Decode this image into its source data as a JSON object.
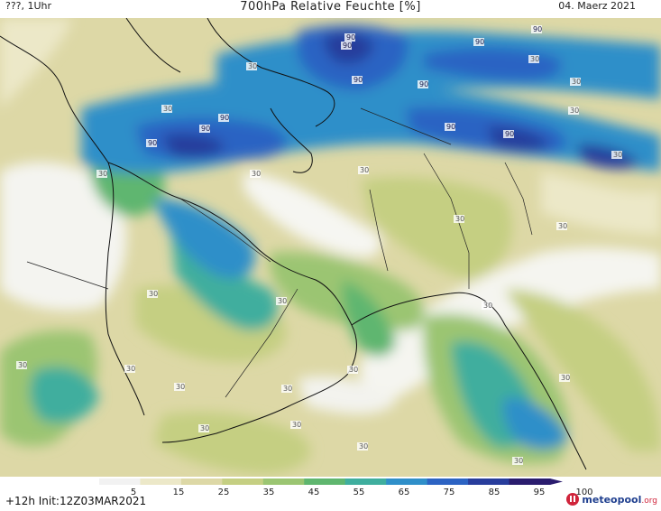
{
  "header": {
    "left": "???, 1Uhr",
    "title": "700hPa Relative Feuchte [%]",
    "date": "04. Maerz 2021"
  },
  "footer": {
    "run": "+12h Init:12Z03MAR2021",
    "logo_name": "meteopool",
    "logo_suffix": ".org"
  },
  "legend": {
    "unit": "%",
    "ticks": [
      "5",
      "15",
      "25",
      "35",
      "45",
      "55",
      "65",
      "75",
      "85",
      "95",
      "100"
    ],
    "colors": [
      "#f2f2f2",
      "#ece8c8",
      "#ddd8a6",
      "#c5cf82",
      "#9bc572",
      "#5fb66f",
      "#3fae9e",
      "#2f8fc9",
      "#2c63c3",
      "#283d9c",
      "#2a1c6e"
    ]
  },
  "map": {
    "contour_labels": [
      "90",
      "90",
      "90",
      "90",
      "90",
      "90",
      "90",
      "90",
      "90",
      "90",
      "90",
      "30",
      "30",
      "30",
      "30",
      "30",
      "30",
      "30",
      "30",
      "30",
      "30",
      "30",
      "30",
      "30",
      "30",
      "30",
      "30",
      "30",
      "30",
      "30",
      "30",
      "30",
      "30",
      "30",
      "30"
    ]
  },
  "colors": {
    "very_dry": "#ffffff",
    "dry": "#ece8c8",
    "moderate": "#c5cf82",
    "moist": "#5fb66f",
    "wet": "#2c63c3",
    "saturated": "#2a1c6e"
  }
}
